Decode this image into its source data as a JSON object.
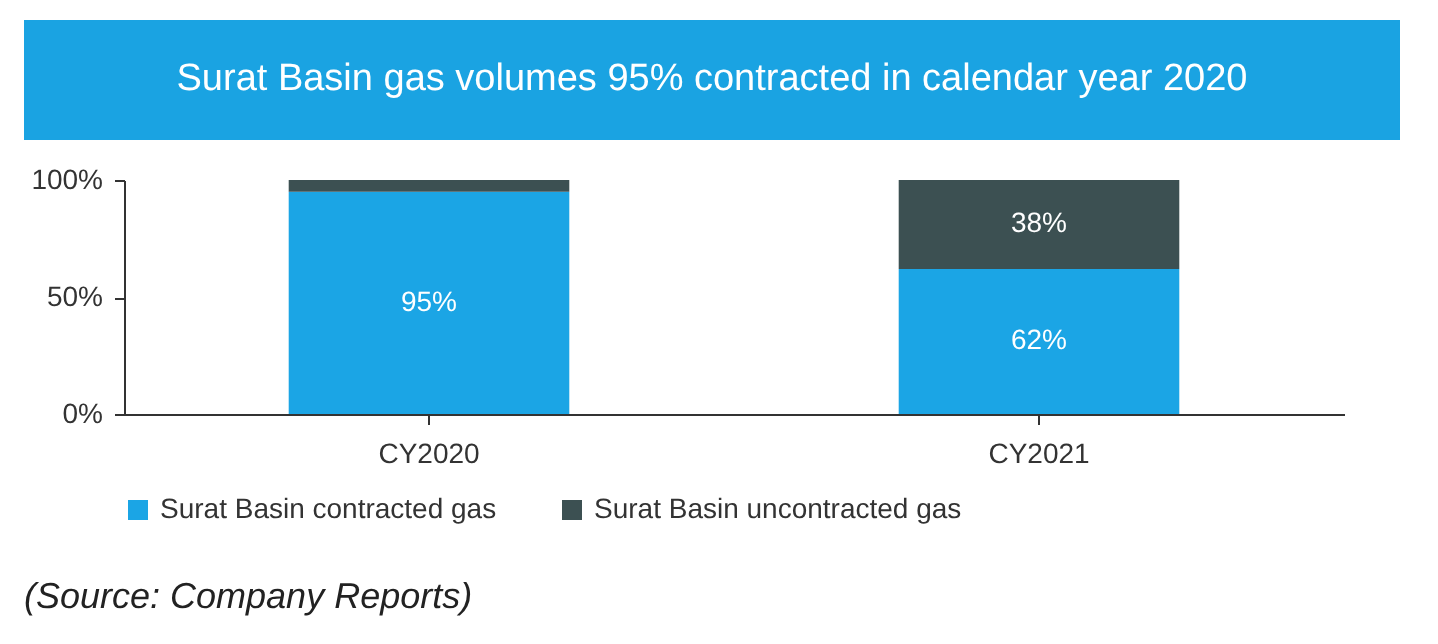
{
  "chart_data": {
    "type": "bar",
    "title": "Surat Basin gas volumes 95% contracted in calendar year 2020",
    "stacked": true,
    "categories": [
      "CY2020",
      "CY2021"
    ],
    "series": [
      {
        "name": "Surat Basin contracted gas",
        "color": "#1ba5e5",
        "values": [
          95,
          62
        ],
        "value_labels": [
          "95%",
          "62%"
        ]
      },
      {
        "name": "Surat Basin uncontracted gas",
        "color": "#3c5052",
        "values": [
          5,
          38
        ],
        "value_labels": [
          null,
          "38%"
        ]
      }
    ],
    "ylim": [
      0,
      100
    ],
    "yticks": [
      {
        "value": 0,
        "label": "0%"
      },
      {
        "value": 50,
        "label": "50%"
      },
      {
        "value": 100,
        "label": "100%"
      }
    ],
    "grid": false,
    "legend": "bottom",
    "annotations": [
      "(Source: Company Reports)"
    ]
  }
}
